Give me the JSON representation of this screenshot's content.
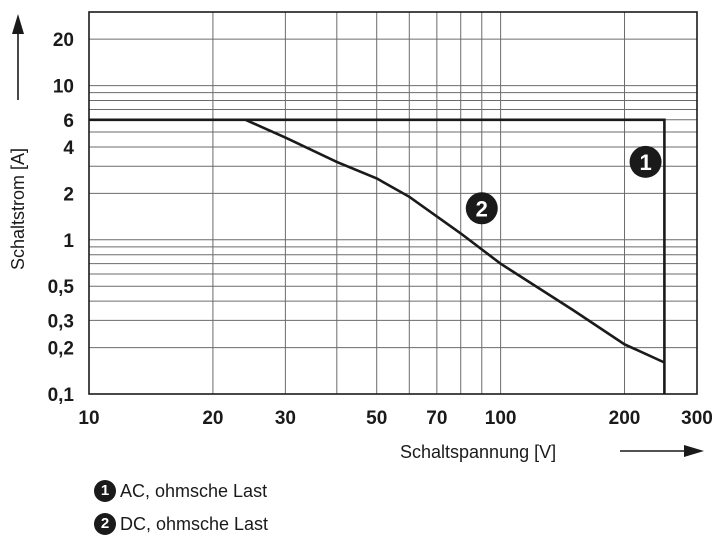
{
  "chart_data": {
    "type": "line",
    "xlabel": "Schaltspannung [V]",
    "ylabel": "Schaltstrom [A]",
    "x_scale": "log",
    "y_scale": "log",
    "xlim": [
      10,
      300
    ],
    "ylim": [
      0.1,
      30
    ],
    "x_ticks": [
      10,
      20,
      30,
      50,
      70,
      100,
      200,
      300
    ],
    "x_tick_labels": [
      "10",
      "20",
      "30",
      "50",
      "70",
      "100",
      "200",
      "300"
    ],
    "y_ticks": [
      0.1,
      0.2,
      0.3,
      0.5,
      1,
      2,
      4,
      6,
      10,
      20
    ],
    "y_tick_labels": [
      "0,1",
      "0,2",
      "0,3",
      "0,5",
      "1",
      "2",
      "4",
      "6",
      "10",
      "20"
    ],
    "x_grid": [
      10,
      20,
      30,
      40,
      50,
      60,
      70,
      80,
      90,
      100,
      200,
      300
    ],
    "y_grid": [
      0.1,
      0.2,
      0.3,
      0.4,
      0.5,
      0.6,
      0.7,
      0.8,
      0.9,
      1,
      2,
      3,
      4,
      5,
      6,
      7,
      8,
      9,
      10,
      20,
      30
    ],
    "grid": true,
    "series": [
      {
        "name": "1",
        "x": [
          10,
          250,
          250
        ],
        "y": [
          6,
          6,
          0.1
        ]
      },
      {
        "name": "2",
        "x": [
          24,
          30,
          40,
          50,
          60,
          80,
          100,
          150,
          200,
          250
        ],
        "y": [
          6,
          4.6,
          3.2,
          2.5,
          1.9,
          1.1,
          0.7,
          0.35,
          0.21,
          0.16
        ]
      }
    ],
    "annotations": [
      {
        "text": "1",
        "x": 225,
        "y": 3.2
      },
      {
        "text": "2",
        "x": 90,
        "y": 1.6
      }
    ]
  },
  "legend": [
    {
      "marker": "1",
      "label": "AC, ohmsche Last"
    },
    {
      "marker": "2",
      "label": "DC, ohmsche Last"
    }
  ]
}
